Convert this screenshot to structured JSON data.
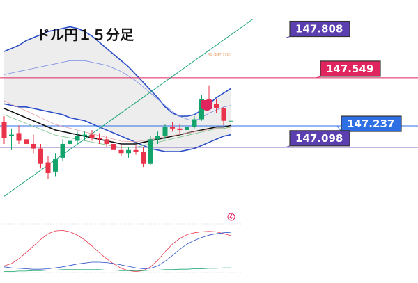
{
  "title": "ドル円１５分足",
  "chart_data": {
    "type": "candlestick",
    "title": "ドル円１５分足",
    "ylim": [
      146.7,
      148.0
    ],
    "price_levels": [
      {
        "label": "147.808",
        "value": 147.808,
        "color": "#5b3fb0"
      },
      {
        "label": "147.549",
        "value": 147.549,
        "color": "#e0245e"
      },
      {
        "label": "147.237",
        "value": 147.237,
        "color": "#2f6fe4"
      },
      {
        "label": "147.098",
        "value": 147.098,
        "color": "#5b3fb0"
      }
    ],
    "faint_label": "R1 (147.798)",
    "candles": [
      {
        "o": 147.26,
        "h": 147.3,
        "l": 147.12,
        "c": 147.16
      },
      {
        "o": 147.17,
        "h": 147.22,
        "l": 147.08,
        "c": 147.18
      },
      {
        "o": 147.19,
        "h": 147.24,
        "l": 147.12,
        "c": 147.14
      },
      {
        "o": 147.15,
        "h": 147.2,
        "l": 147.08,
        "c": 147.12
      },
      {
        "o": 147.12,
        "h": 147.18,
        "l": 147.06,
        "c": 147.09
      },
      {
        "o": 147.09,
        "h": 147.12,
        "l": 146.96,
        "c": 146.99
      },
      {
        "o": 147.0,
        "h": 147.04,
        "l": 146.89,
        "c": 146.93
      },
      {
        "o": 146.94,
        "h": 147.06,
        "l": 146.91,
        "c": 147.02
      },
      {
        "o": 147.03,
        "h": 147.15,
        "l": 147.01,
        "c": 147.12
      },
      {
        "o": 147.12,
        "h": 147.16,
        "l": 147.08,
        "c": 147.14
      },
      {
        "o": 147.14,
        "h": 147.2,
        "l": 147.11,
        "c": 147.17
      },
      {
        "o": 147.17,
        "h": 147.2,
        "l": 147.14,
        "c": 147.18
      },
      {
        "o": 147.18,
        "h": 147.21,
        "l": 147.14,
        "c": 147.16
      },
      {
        "o": 147.16,
        "h": 147.19,
        "l": 147.12,
        "c": 147.15
      },
      {
        "o": 147.15,
        "h": 147.17,
        "l": 147.1,
        "c": 147.12
      },
      {
        "o": 147.12,
        "h": 147.15,
        "l": 147.06,
        "c": 147.08
      },
      {
        "o": 147.08,
        "h": 147.11,
        "l": 147.04,
        "c": 147.06
      },
      {
        "o": 147.06,
        "h": 147.1,
        "l": 147.03,
        "c": 147.08
      },
      {
        "o": 147.08,
        "h": 147.11,
        "l": 147.05,
        "c": 147.07
      },
      {
        "o": 147.07,
        "h": 147.1,
        "l": 146.97,
        "c": 146.99
      },
      {
        "o": 146.99,
        "h": 147.17,
        "l": 146.98,
        "c": 147.15
      },
      {
        "o": 147.15,
        "h": 147.2,
        "l": 147.12,
        "c": 147.17
      },
      {
        "o": 147.17,
        "h": 147.25,
        "l": 147.15,
        "c": 147.23
      },
      {
        "o": 147.23,
        "h": 147.26,
        "l": 147.2,
        "c": 147.22
      },
      {
        "o": 147.22,
        "h": 147.25,
        "l": 147.19,
        "c": 147.21
      },
      {
        "o": 147.21,
        "h": 147.24,
        "l": 147.19,
        "c": 147.23
      },
      {
        "o": 147.23,
        "h": 147.3,
        "l": 147.22,
        "c": 147.28
      },
      {
        "o": 147.28,
        "h": 147.44,
        "l": 147.27,
        "c": 147.41
      },
      {
        "o": 147.41,
        "h": 147.5,
        "l": 147.36,
        "c": 147.38
      },
      {
        "o": 147.38,
        "h": 147.41,
        "l": 147.32,
        "c": 147.35
      },
      {
        "o": 147.35,
        "h": 147.36,
        "l": 147.24,
        "c": 147.27
      },
      {
        "o": 147.27,
        "h": 147.3,
        "l": 147.24,
        "c": 147.27
      }
    ],
    "upper_band": [
      147.72,
      147.74,
      147.76,
      147.79,
      147.81,
      147.83,
      147.85,
      147.86,
      147.87,
      147.88,
      147.87,
      147.85,
      147.82,
      147.78,
      147.74,
      147.7,
      147.66,
      147.62,
      147.57,
      147.52,
      147.47,
      147.42,
      147.36,
      147.32,
      147.3,
      147.3,
      147.31,
      147.34,
      147.38,
      147.42,
      147.45,
      147.48
    ],
    "middle_band": [
      147.57,
      147.58,
      147.59,
      147.6,
      147.61,
      147.62,
      147.63,
      147.64,
      147.65,
      147.66,
      147.66,
      147.66,
      147.65,
      147.64,
      147.63,
      147.61,
      147.59,
      147.56,
      147.53,
      147.49,
      147.45,
      147.41,
      147.37,
      147.33,
      147.3,
      147.28,
      147.27,
      147.29,
      147.32,
      147.34,
      147.36,
      147.37
    ],
    "lower_band": [
      147.38,
      147.37,
      147.36,
      147.36,
      147.35,
      147.34,
      147.33,
      147.32,
      147.31,
      147.29,
      147.28,
      147.27,
      147.25,
      147.23,
      147.21,
      147.19,
      147.17,
      147.15,
      147.13,
      147.11,
      147.09,
      147.08,
      147.07,
      147.07,
      147.07,
      147.08,
      147.09,
      147.11,
      147.13,
      147.15,
      147.17,
      147.18
    ],
    "ma_black": [
      147.35,
      147.33,
      147.31,
      147.29,
      147.27,
      147.25,
      147.23,
      147.21,
      147.2,
      147.19,
      147.18,
      147.17,
      147.16,
      147.15,
      147.14,
      147.13,
      147.12,
      147.12,
      147.12,
      147.13,
      147.14,
      147.15,
      147.16,
      147.17,
      147.18,
      147.19,
      147.2,
      147.21,
      147.22,
      147.23,
      147.23,
      147.24
    ],
    "trendline": {
      "from": [
        0,
        146.78
      ],
      "to": [
        34,
        147.93
      ]
    },
    "oscillator": {
      "red": [
        0.2,
        0.25,
        0.35,
        0.48,
        0.62,
        0.76,
        0.88,
        0.94,
        0.95,
        0.92,
        0.85,
        0.75,
        0.62,
        0.48,
        0.35,
        0.24,
        0.15,
        0.1,
        0.08,
        0.1,
        0.18,
        0.32,
        0.5,
        0.66,
        0.78,
        0.86,
        0.9,
        0.92,
        0.93,
        0.92,
        0.88,
        0.84
      ],
      "blue": [
        0.18,
        0.16,
        0.15,
        0.14,
        0.13,
        0.13,
        0.14,
        0.16,
        0.18,
        0.21,
        0.24,
        0.26,
        0.28,
        0.28,
        0.27,
        0.25,
        0.22,
        0.19,
        0.16,
        0.14,
        0.15,
        0.2,
        0.3,
        0.42,
        0.55,
        0.66,
        0.74,
        0.8,
        0.85,
        0.88,
        0.9,
        0.91
      ],
      "green": [
        0.08,
        0.08,
        0.09,
        0.09,
        0.1,
        0.1,
        0.11,
        0.11,
        0.12,
        0.12,
        0.12,
        0.12,
        0.12,
        0.12,
        0.11,
        0.11,
        0.1,
        0.1,
        0.1,
        0.1,
        0.11,
        0.11,
        0.12,
        0.12,
        0.13,
        0.13,
        0.14,
        0.14,
        0.15,
        0.15,
        0.16,
        0.16
      ]
    },
    "colors": {
      "up": "#13a36b",
      "down": "#e8334a",
      "band": "#2a4ec7",
      "band_thin": "#7a8de6",
      "trend": "#19a37a",
      "ma": "#111111",
      "fill": "#e6e6e6"
    }
  }
}
